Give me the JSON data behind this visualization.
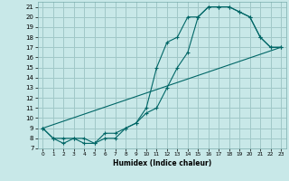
{
  "xlabel": "Humidex (Indice chaleur)",
  "background_color": "#c8e8e8",
  "grid_color": "#a0c8c8",
  "line_color": "#006666",
  "xlim": [
    -0.5,
    23.5
  ],
  "ylim": [
    7,
    21.5
  ],
  "xticks": [
    0,
    1,
    2,
    3,
    4,
    5,
    6,
    7,
    8,
    9,
    10,
    11,
    12,
    13,
    14,
    15,
    16,
    17,
    18,
    19,
    20,
    21,
    22,
    23
  ],
  "yticks": [
    7,
    8,
    9,
    10,
    11,
    12,
    13,
    14,
    15,
    16,
    17,
    18,
    19,
    20,
    21
  ],
  "line1_x": [
    0,
    1,
    2,
    3,
    4,
    5,
    6,
    7,
    8,
    9,
    10,
    11,
    12,
    13,
    14,
    15,
    16,
    17,
    18,
    19,
    20,
    21,
    22,
    23
  ],
  "line1_y": [
    9,
    8,
    8,
    8,
    7.5,
    7.5,
    8,
    8,
    9,
    9.5,
    11,
    15,
    17.5,
    18,
    20,
    20,
    21,
    21,
    21,
    20.5,
    20,
    18,
    17,
    17
  ],
  "line2_x": [
    0,
    1,
    2,
    3,
    4,
    5,
    6,
    7,
    8,
    9,
    10,
    11,
    12,
    13,
    14,
    15,
    16,
    17,
    18,
    19,
    20,
    21,
    22,
    23
  ],
  "line2_y": [
    9,
    8,
    7.5,
    8,
    8,
    7.5,
    8.5,
    8.5,
    9,
    9.5,
    10.5,
    11,
    13,
    15,
    16.5,
    20,
    21,
    21,
    21,
    20.5,
    20,
    18,
    17,
    17
  ],
  "line3_x": [
    0,
    23
  ],
  "line3_y": [
    9,
    17
  ]
}
